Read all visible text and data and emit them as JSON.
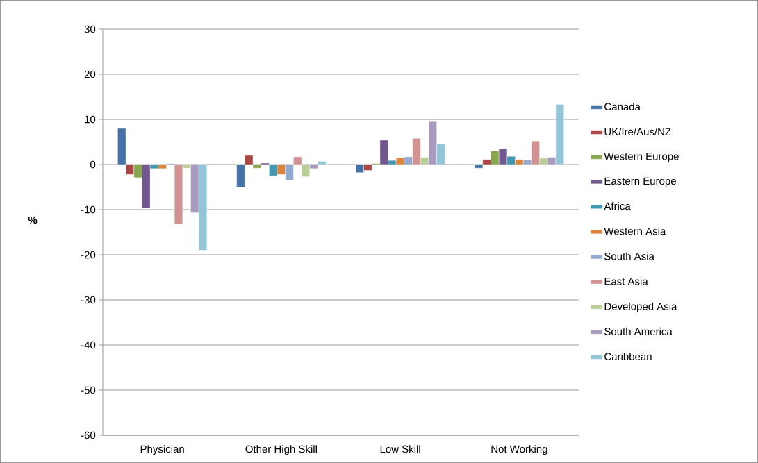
{
  "chart_data": {
    "type": "bar",
    "ylabel": "%",
    "categories": [
      "Physician",
      "Other High Skill",
      "Low Skill",
      "Not Working"
    ],
    "series": [
      {
        "name": "Canada",
        "color": "#4572a7",
        "values": [
          8.0,
          -5.0,
          -1.8,
          -0.8
        ]
      },
      {
        "name": "UK/Ire/Aus/NZ",
        "color": "#aa4643",
        "values": [
          -2.2,
          2.0,
          -1.3,
          1.1
        ]
      },
      {
        "name": "Western Europe",
        "color": "#89a54e",
        "values": [
          -2.9,
          -0.8,
          0.2,
          3.0
        ]
      },
      {
        "name": "Eastern Europe",
        "color": "#71588f",
        "values": [
          -9.7,
          0.3,
          5.4,
          3.5
        ]
      },
      {
        "name": "Africa",
        "color": "#4198af",
        "values": [
          -0.9,
          -2.5,
          0.9,
          1.8
        ]
      },
      {
        "name": "Western Asia",
        "color": "#db843d",
        "values": [
          -0.9,
          -2.2,
          1.5,
          1.1
        ]
      },
      {
        "name": "South Asia",
        "color": "#93a9cf",
        "values": [
          0.2,
          -3.5,
          1.7,
          1.0
        ]
      },
      {
        "name": "East Asia",
        "color": "#d19392",
        "values": [
          -13.2,
          1.7,
          5.8,
          5.2
        ]
      },
      {
        "name": "Developed Asia",
        "color": "#b9cd96",
        "values": [
          -0.8,
          -2.7,
          1.6,
          1.4
        ]
      },
      {
        "name": "South America",
        "color": "#a99bbd",
        "values": [
          -10.7,
          -0.9,
          9.5,
          1.6
        ]
      },
      {
        "name": "Caribbean",
        "color": "#92c5d6",
        "values": [
          -19.0,
          0.7,
          4.5,
          13.3
        ]
      }
    ],
    "ylim": [
      -60,
      30
    ],
    "yticks": [
      -60,
      -50,
      -40,
      -30,
      -20,
      -10,
      0,
      10,
      20,
      30
    ],
    "grid": "y",
    "legend": "right"
  }
}
